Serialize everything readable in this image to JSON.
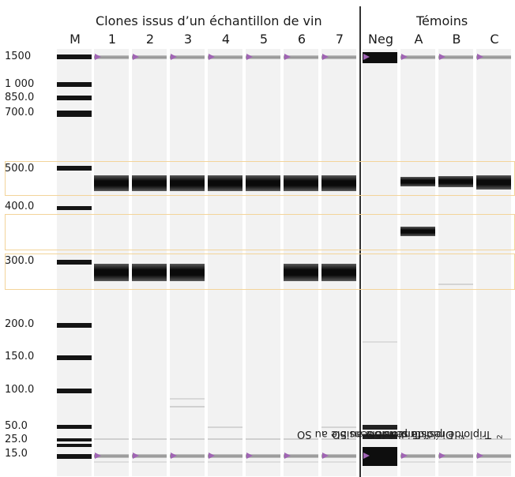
{
  "header": {
    "group1_title": "Clones issus d’un  échantillon de vin",
    "group2_title": "Témoins"
  },
  "lanes": [
    {
      "label": "M"
    },
    {
      "label": "1"
    },
    {
      "label": "2"
    },
    {
      "label": "3"
    },
    {
      "label": "4"
    },
    {
      "label": "5"
    },
    {
      "label": "6"
    },
    {
      "label": "7"
    },
    {
      "label": "Neg"
    },
    {
      "label": "A"
    },
    {
      "label": "B"
    },
    {
      "label": "C"
    }
  ],
  "ladder_sizes": [
    "1500",
    "1 000",
    "850.0",
    "700.0",
    "500.0",
    "400.0",
    "300.0",
    "200.0",
    "150.0",
    "100.0",
    "50.0",
    "25.0",
    "15.0"
  ],
  "controls": [
    {
      "lane": "A",
      "text": "Triploïde sensible au SO",
      "sub": "2"
    },
    {
      "lane": "B",
      "text": "Diploïde sensible au SO",
      "sub": "2"
    },
    {
      "lane": "C",
      "text": "Triploïde résistant au SO",
      "sub": "2"
    }
  ],
  "colors": {
    "lane_background": "#f2f2f2",
    "band": "#111111",
    "marker_triangle": "#a064b4",
    "highlight_box": "#f3d49a",
    "separator": "#333333"
  }
}
